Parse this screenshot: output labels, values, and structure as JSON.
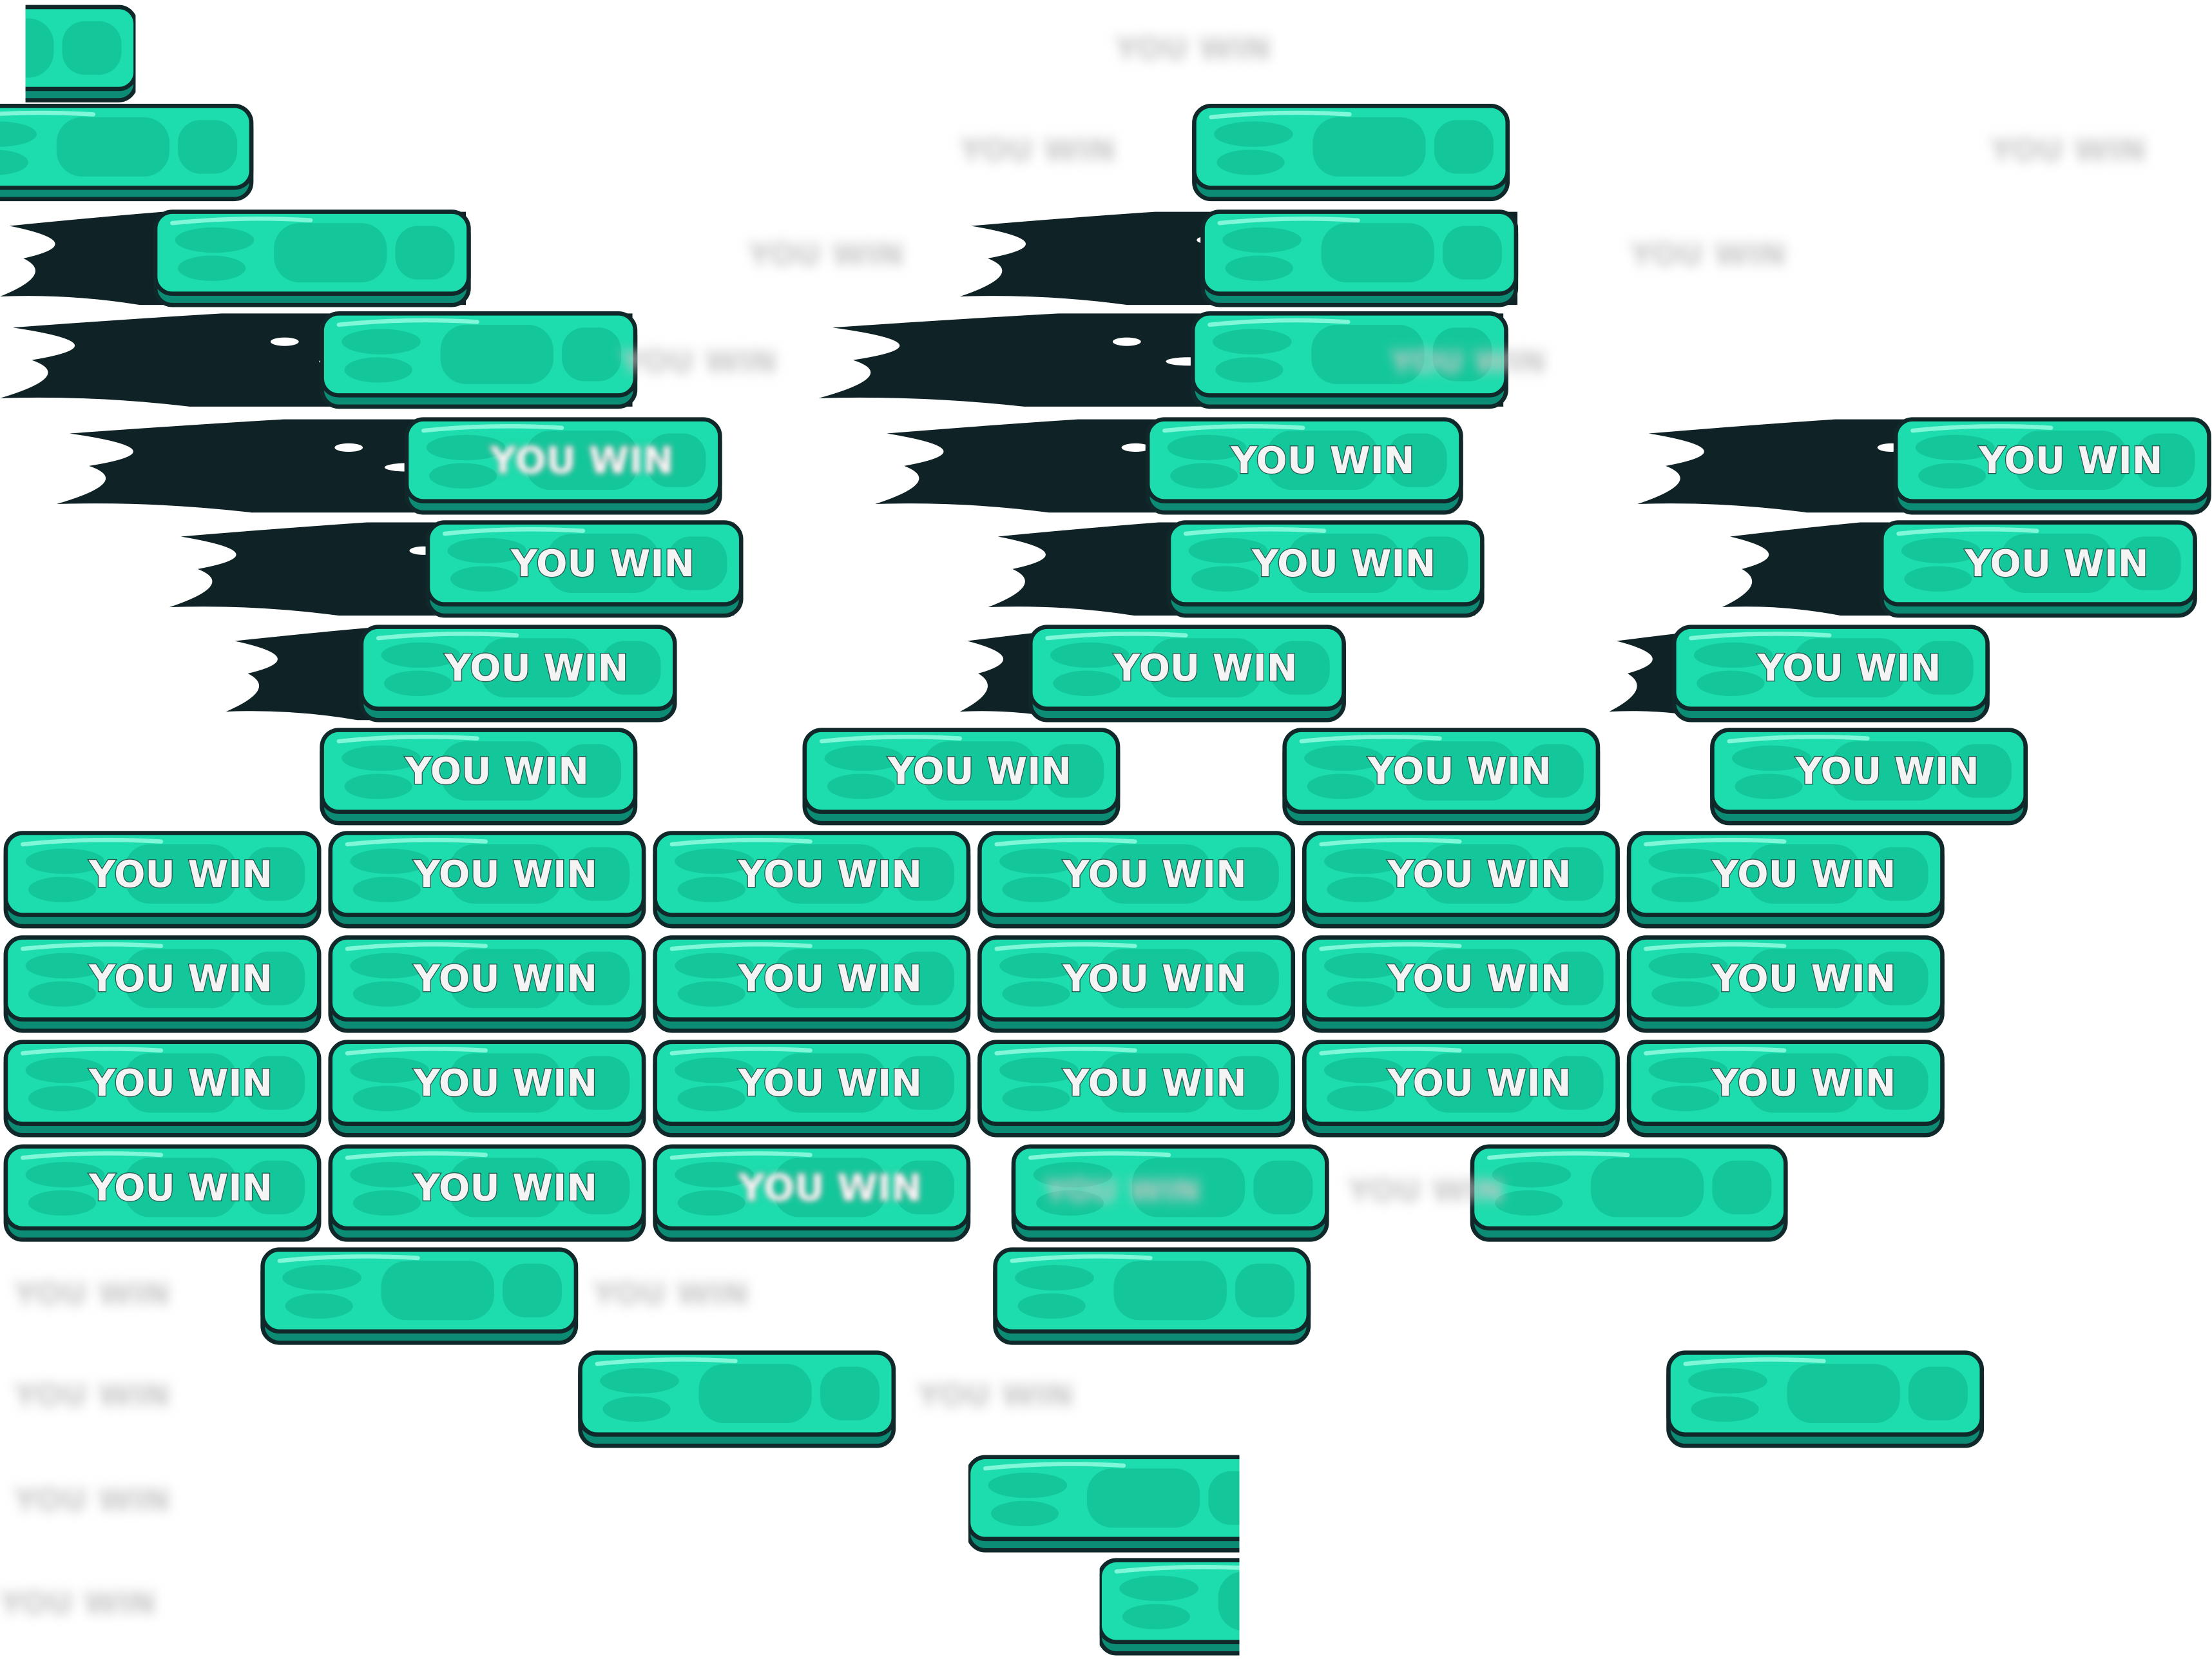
{
  "button_label": "YOU WIN"
}
